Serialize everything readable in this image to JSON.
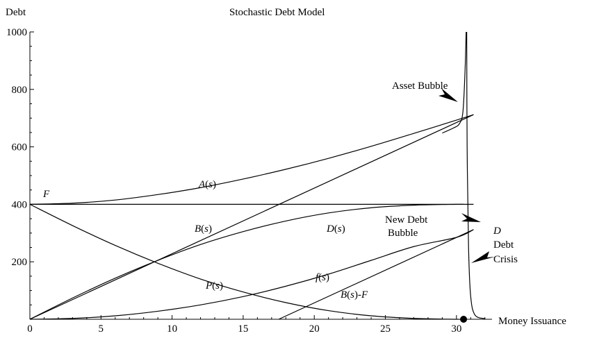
{
  "chart_data": {
    "type": "line",
    "title": "Stochastic Debt Model",
    "xlabel": "Money Issuance",
    "ylabel": "Debt",
    "xlim": [
      0,
      32.5
    ],
    "ylim": [
      0,
      1000
    ],
    "xticks": [
      0,
      5,
      10,
      15,
      20,
      25,
      30
    ],
    "yticks": [
      200,
      400,
      600,
      800,
      1000
    ],
    "series": [
      {
        "name": "F",
        "x": [
          0,
          31.2
        ],
        "y": [
          400,
          400
        ]
      },
      {
        "name": "A(s)",
        "x": [
          0,
          3,
          6,
          9,
          12,
          15,
          18,
          21,
          24,
          27,
          30,
          31.2
        ],
        "y": [
          400,
          404,
          415,
          434,
          458,
          488,
          522,
          560,
          602,
          647,
          693,
          712
        ]
      },
      {
        "name": "B(s)",
        "x": [
          0,
          31.2
        ],
        "y": [
          0,
          712
        ]
      },
      {
        "name": "D(s)",
        "x": [
          0,
          3,
          6,
          9,
          12,
          15,
          18,
          21,
          24,
          27,
          30,
          30.5
        ],
        "y": [
          0,
          74,
          143,
          205,
          260,
          305,
          342,
          370,
          388,
          397,
          400,
          400
        ]
      },
      {
        "name": "P(s)",
        "x": [
          0,
          3,
          6,
          9,
          12,
          15,
          18,
          21,
          24,
          27,
          30,
          30.5
        ],
        "y": [
          400,
          326,
          257,
          195,
          140,
          95,
          58,
          30,
          12,
          3,
          0,
          0
        ]
      },
      {
        "name": "f(s)",
        "x": [
          0,
          3,
          6,
          9,
          12,
          15,
          18,
          21,
          24,
          27,
          30,
          31.2
        ],
        "y": [
          0,
          3,
          12,
          28,
          50,
          79,
          115,
          157,
          205,
          253,
          285,
          312
        ]
      },
      {
        "name": "B(s)-F",
        "x": [
          17.5,
          31.2
        ],
        "y": [
          0,
          312
        ]
      },
      {
        "name": "Asset Bubble",
        "x": [
          29,
          29.8,
          30.2,
          30.45,
          30.6,
          30.68
        ],
        "y": [
          648,
          666,
          680,
          720,
          860,
          1000
        ]
      },
      {
        "name": "Debt Crisis",
        "x": [
          30.72,
          30.75,
          30.85,
          31.0,
          31.3,
          32.0
        ],
        "y": [
          1000,
          600,
          250,
          80,
          15,
          2
        ]
      }
    ],
    "annotations": {
      "F": "F",
      "A": "A(s)",
      "B": "B(s)",
      "D_s": "D(s)",
      "P": "P(s)",
      "f": "f(s)",
      "BF": "B(s)-F",
      "D": "D",
      "asset_bubble": "Asset Bubble",
      "new_debt_1": "New Debt",
      "new_debt_2": "Bubble",
      "debt_1": "Debt",
      "debt_2": "Crisis"
    },
    "marker": {
      "x": 30.5,
      "y": 0
    },
    "grid": false
  }
}
